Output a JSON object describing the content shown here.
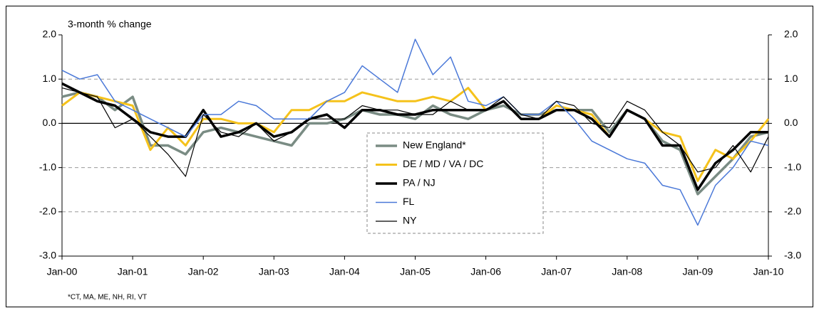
{
  "chart_data": {
    "type": "line",
    "y_axis_label": "3-month % change",
    "footnote": "*CT, MA, ME, NH, RI, VT",
    "categories": [
      "Jan-00",
      null,
      null,
      null,
      "Jan-01",
      null,
      null,
      null,
      "Jan-02",
      null,
      null,
      null,
      "Jan-03",
      null,
      null,
      null,
      "Jan-04",
      null,
      null,
      null,
      "Jan-05",
      null,
      null,
      null,
      "Jan-06",
      null,
      null,
      null,
      "Jan-07",
      null,
      null,
      null,
      "Jan-08",
      null,
      null,
      null,
      "Jan-09",
      null,
      null,
      null,
      "Jan-10"
    ],
    "series": [
      {
        "name": "New England*",
        "color": "#7a8c84",
        "width": 3.5,
        "values": [
          0.6,
          0.7,
          0.6,
          0.3,
          0.6,
          -0.5,
          -0.5,
          -0.7,
          -0.2,
          -0.1,
          -0.2,
          -0.3,
          -0.4,
          -0.5,
          0.0,
          0.0,
          0.1,
          0.3,
          0.2,
          0.2,
          0.1,
          0.4,
          0.2,
          0.1,
          0.3,
          0.4,
          0.2,
          0.2,
          0.3,
          0.3,
          0.3,
          -0.2,
          0.3,
          0.1,
          -0.4,
          -0.6,
          -1.6,
          -1.2,
          -0.8,
          -0.3,
          -0.2
        ]
      },
      {
        "name": "DE / MD / VA / DC",
        "color": "#f5c21b",
        "width": 3,
        "values": [
          0.4,
          0.7,
          0.6,
          0.5,
          0.4,
          -0.6,
          -0.1,
          -0.5,
          0.1,
          0.1,
          0.0,
          0.0,
          -0.2,
          0.3,
          0.3,
          0.5,
          0.5,
          0.7,
          0.6,
          0.5,
          0.5,
          0.6,
          0.5,
          0.8,
          0.3,
          0.5,
          0.1,
          0.1,
          0.4,
          0.3,
          0.2,
          -0.3,
          0.3,
          0.1,
          -0.2,
          -0.3,
          -1.3,
          -0.6,
          -0.8,
          -0.4,
          0.1
        ]
      },
      {
        "name": "PA / NJ",
        "color": "#000000",
        "width": 3.5,
        "values": [
          0.9,
          0.7,
          0.5,
          0.4,
          0.1,
          -0.2,
          -0.3,
          -0.3,
          0.3,
          -0.3,
          -0.2,
          0.0,
          -0.3,
          -0.2,
          0.1,
          0.2,
          -0.1,
          0.3,
          0.3,
          0.2,
          0.2,
          0.3,
          0.3,
          0.3,
          0.3,
          0.5,
          0.1,
          0.1,
          0.3,
          0.3,
          0.1,
          -0.3,
          0.3,
          0.1,
          -0.5,
          -0.5,
          -1.5,
          -0.9,
          -0.6,
          -0.2,
          -0.2
        ]
      },
      {
        "name": "FL",
        "color": "#4a78d8",
        "width": 1.5,
        "values": [
          1.2,
          1.0,
          1.1,
          0.5,
          0.3,
          0.1,
          -0.1,
          -0.3,
          0.2,
          0.2,
          0.5,
          0.4,
          0.1,
          0.1,
          0.1,
          0.5,
          0.7,
          1.3,
          1.0,
          0.7,
          1.9,
          1.1,
          1.5,
          0.5,
          0.4,
          0.6,
          0.2,
          0.2,
          0.5,
          0.1,
          -0.4,
          -0.6,
          -0.8,
          -0.9,
          -1.4,
          -1.5,
          -2.3,
          -1.4,
          -1.0,
          -0.4,
          -0.5
        ]
      },
      {
        "name": "NY",
        "color": "#000000",
        "width": 1.2,
        "values": [
          0.8,
          0.7,
          0.6,
          -0.1,
          0.1,
          -0.3,
          -0.7,
          -1.2,
          0.2,
          -0.2,
          -0.3,
          0.0,
          -0.4,
          -0.2,
          0.1,
          0.1,
          0.1,
          0.4,
          0.3,
          0.3,
          0.2,
          0.2,
          0.5,
          0.3,
          0.3,
          0.6,
          0.2,
          0.1,
          0.5,
          0.4,
          0.0,
          -0.1,
          0.5,
          0.3,
          -0.2,
          -0.5,
          -1.1,
          -1.0,
          -0.5,
          -1.1,
          -0.3
        ]
      }
    ],
    "ylim": [
      -3,
      2
    ],
    "yticks": [
      {
        "value": 2,
        "label": "2.0"
      },
      {
        "value": 1,
        "label": "1.0"
      },
      {
        "value": 0,
        "label": "0.0"
      },
      {
        "value": -1,
        "label": "-1.0"
      },
      {
        "value": -2,
        "label": "-2.0"
      },
      {
        "value": -3,
        "label": "-3.0"
      }
    ],
    "y2lim": [
      -3,
      2
    ],
    "y2ticks": [
      {
        "value": 2,
        "label": "2.0"
      },
      {
        "value": 1,
        "label": "1.0"
      },
      {
        "value": 0,
        "label": "0.0"
      },
      {
        "value": -1,
        "label": "-1.0"
      },
      {
        "value": -2,
        "label": "-2.0"
      },
      {
        "value": -3,
        "label": "-3.0"
      }
    ],
    "grid": true,
    "legend": "center"
  }
}
